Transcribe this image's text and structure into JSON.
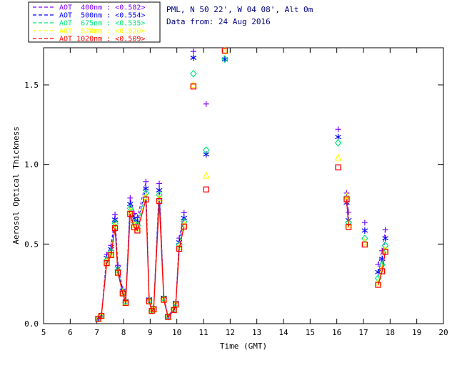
{
  "header": {
    "line1": "PML, N 50 22', W 04 08', Alt 0m",
    "line2": "Data from: 24 Aug 2016"
  },
  "legend": {
    "entries": [
      {
        "key": "400",
        "label": "AOT  400nm : <0.582>",
        "mean": "<0.582>",
        "color": "#7F00FF",
        "marker": "plus"
      },
      {
        "key": "500",
        "label": "AOT  500nm : <0.554>",
        "mean": "<0.554>",
        "color": "#0000FF",
        "marker": "asterisk"
      },
      {
        "key": "675",
        "label": "AOT  675nm : <0.535>",
        "mean": "<0.535>",
        "color": "#00E67A",
        "marker": "diamond"
      },
      {
        "key": "870",
        "label": "AOT  870nm : <0.520>",
        "mean": "<0.520>",
        "color": "#FFFF00",
        "marker": "triangle"
      },
      {
        "key": "1020",
        "label": "AOT 1020nm : <0.509>",
        "mean": "<0.509>",
        "color": "#FF0000",
        "marker": "square"
      }
    ]
  },
  "axes": {
    "xlabel": "Time (GMT)",
    "ylabel": "Aerosol Optical Thickness",
    "xlim": [
      5,
      20
    ],
    "ylim": [
      0,
      1.733
    ],
    "x_ticks": [
      5,
      6,
      7,
      8,
      9,
      10,
      11,
      12,
      13,
      14,
      15,
      16,
      17,
      18,
      19,
      20
    ],
    "y_ticks": [
      {
        "v": 0.0,
        "label": "0.0"
      },
      {
        "v": 0.5,
        "label": "0.5"
      },
      {
        "v": 1.0,
        "label": "1.0"
      },
      {
        "v": 1.5,
        "label": "1.5"
      }
    ],
    "grid": false
  },
  "chart_data": {
    "type": "scatter",
    "title": "PML, N 50 22', W 04 08', Alt 0m",
    "subtitle": "Data from: 24 Aug 2016",
    "xlabel": "Time (GMT)",
    "ylabel": "Aerosol Optical Thickness",
    "xlim": [
      5,
      20
    ],
    "ylim": [
      0,
      1.733
    ],
    "series_order": [
      "400",
      "500",
      "675",
      "870",
      "1020"
    ],
    "clusters": [
      {
        "connected": true,
        "times": [
          7.05,
          7.17,
          7.37,
          7.53,
          7.68,
          7.79,
          7.97,
          8.08,
          8.25,
          8.4,
          8.52,
          8.84,
          8.96,
          9.06,
          9.13,
          9.34,
          9.51,
          9.67,
          9.89,
          9.96,
          10.09,
          10.27
        ],
        "values": {
          "400": [
            0.034,
            0.056,
            0.434,
            0.491,
            0.686,
            0.366,
            0.217,
            0.149,
            0.789,
            0.692,
            0.669,
            0.892,
            0.16,
            0.091,
            0.103,
            0.88,
            0.171,
            0.048,
            0.097,
            0.137,
            0.537,
            0.697
          ],
          "500": [
            0.033,
            0.053,
            0.413,
            0.468,
            0.653,
            0.348,
            0.207,
            0.141,
            0.751,
            0.658,
            0.636,
            0.849,
            0.152,
            0.087,
            0.098,
            0.838,
            0.163,
            0.046,
            0.092,
            0.131,
            0.511,
            0.664
          ],
          "675": [
            0.032,
            0.051,
            0.399,
            0.452,
            0.631,
            0.336,
            0.2,
            0.137,
            0.725,
            0.636,
            0.615,
            0.82,
            0.147,
            0.084,
            0.095,
            0.809,
            0.158,
            0.044,
            0.089,
            0.126,
            0.494,
            0.641
          ],
          "870": [
            0.031,
            0.05,
            0.388,
            0.439,
            0.613,
            0.327,
            0.194,
            0.133,
            0.705,
            0.618,
            0.598,
            0.797,
            0.143,
            0.082,
            0.092,
            0.787,
            0.153,
            0.043,
            0.087,
            0.123,
            0.48,
            0.623
          ],
          "1020": [
            0.03,
            0.049,
            0.38,
            0.43,
            0.6,
            0.32,
            0.19,
            0.13,
            0.69,
            0.605,
            0.585,
            0.78,
            0.14,
            0.08,
            0.09,
            0.77,
            0.15,
            0.042,
            0.085,
            0.12,
            0.47,
            0.61
          ]
        }
      },
      {
        "connected": false,
        "times": [
          10.62
        ],
        "values": {
          "400": [
            1.71
          ],
          "500": [
            1.67
          ],
          "675": [
            1.57
          ],
          "870": [
            1.5
          ],
          "1020": [
            1.49
          ]
        }
      },
      {
        "connected": false,
        "times": [
          11.1
        ],
        "values": {
          "400": [
            1.38
          ],
          "500": [
            1.063
          ],
          "675": [
            1.09
          ],
          "870": [
            0.929
          ],
          "1020": [
            0.843
          ]
        }
      },
      {
        "connected": false,
        "times": [
          11.8
        ],
        "values": {
          "500": [
            1.66
          ],
          "675": [
            1.662
          ],
          "870": [
            1.712
          ],
          "1020": [
            1.715
          ]
        }
      },
      {
        "connected": false,
        "times": [
          16.05
        ],
        "values": {
          "400": [
            1.221
          ],
          "500": [
            1.172
          ],
          "675": [
            1.136
          ],
          "870": [
            1.042
          ],
          "1020": [
            0.982
          ]
        }
      },
      {
        "connected": true,
        "times": [
          16.37,
          16.44
        ],
        "values": {
          "400": [
            0.82,
            0.7
          ],
          "500": [
            0.76,
            0.65
          ],
          "675": [
            0.795,
            0.635
          ],
          "870": [
            0.8,
            0.62
          ],
          "1020": [
            0.781,
            0.608
          ]
        }
      },
      {
        "connected": false,
        "times": [
          17.05
        ],
        "values": {
          "400": [
            0.635
          ],
          "500": [
            0.585
          ],
          "675": [
            0.535
          ],
          "870": [
            0.51
          ],
          "1020": [
            0.497
          ]
        }
      },
      {
        "connected": true,
        "times": [
          17.55,
          17.7,
          17.82
        ],
        "values": {
          "400": [
            0.373,
            0.458,
            0.59
          ],
          "500": [
            0.324,
            0.407,
            0.537
          ],
          "675": [
            0.284,
            0.37,
            0.49
          ],
          "870": [
            0.258,
            0.345,
            0.465
          ],
          "1020": [
            0.244,
            0.329,
            0.452
          ]
        }
      }
    ]
  },
  "colors": {
    "frame": "#000000",
    "title_text": "#000080",
    "background": "#ffffff"
  }
}
